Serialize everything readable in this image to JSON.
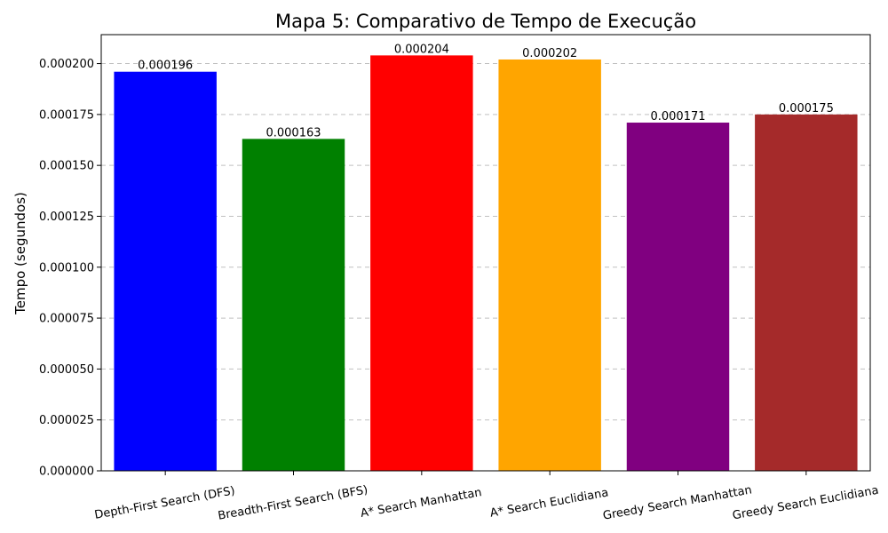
{
  "chart_data": {
    "type": "bar",
    "title": "Mapa 5: Comparativo de Tempo de Execução",
    "xlabel": "",
    "ylabel": "Tempo (segundos)",
    "categories": [
      "Depth-First Search (DFS)",
      "Breadth-First Search (BFS)",
      "A* Search Manhattan",
      "A* Search Euclidiana",
      "Greedy Search Manhattan",
      "Greedy Search Euclidiana"
    ],
    "values": [
      0.000196,
      0.000163,
      0.000204,
      0.000202,
      0.000171,
      0.000175
    ],
    "value_labels": [
      "0.000196",
      "0.000163",
      "0.000204",
      "0.000202",
      "0.000171",
      "0.000175"
    ],
    "colors": [
      "#0000ff",
      "#008000",
      "#ff0000",
      "#ffa500",
      "#800080",
      "#a52a2a"
    ],
    "ylim": [
      0,
      0.0002142
    ],
    "yticks": [
      0,
      2.5e-05,
      5e-05,
      7.5e-05,
      0.0001,
      0.000125,
      0.00015,
      0.000175,
      0.0002
    ],
    "ytick_labels": [
      "0.000000",
      "0.000025",
      "0.000050",
      "0.000075",
      "0.000100",
      "0.000125",
      "0.000150",
      "0.000175",
      "0.000200"
    ],
    "grid": "y-dashed",
    "legend": "none"
  }
}
